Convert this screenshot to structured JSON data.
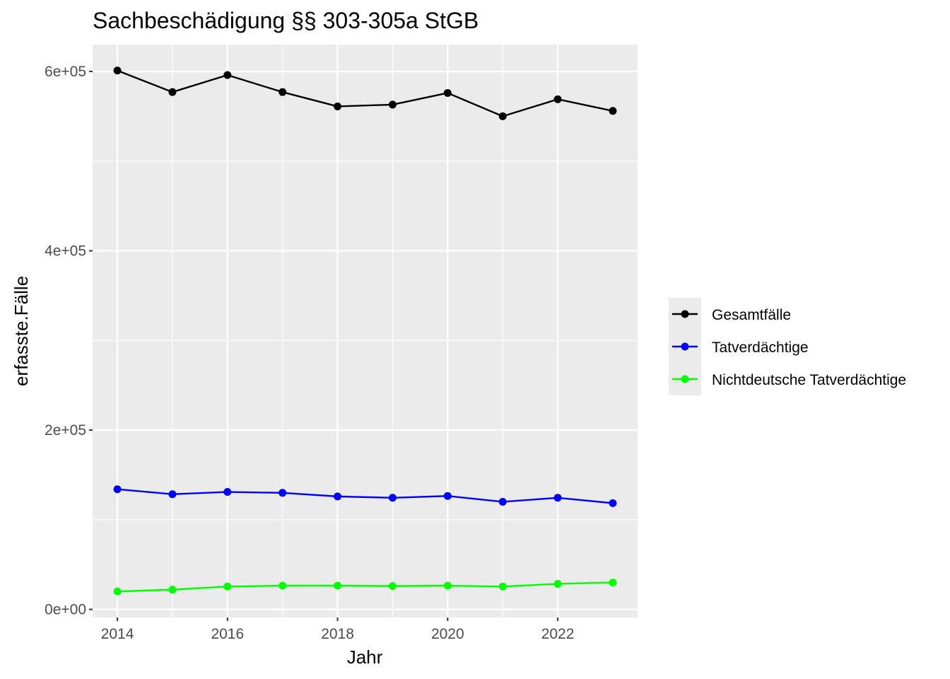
{
  "chart_data": {
    "type": "line",
    "title": "Sachbeschädigung §§ 303-305a StGB",
    "xlabel": "Jahr",
    "ylabel": "erfasste.Fälle",
    "x": [
      2014,
      2015,
      2016,
      2017,
      2018,
      2019,
      2020,
      2021,
      2022,
      2023
    ],
    "xlim": [
      2013.55,
      2023.45
    ],
    "ylim": [
      -9000,
      630000
    ],
    "x_ticks": [
      2014,
      2016,
      2018,
      2020,
      2022
    ],
    "x_tick_labels": [
      "2014",
      "2016",
      "2018",
      "2020",
      "2022"
    ],
    "y_ticks": [
      0,
      200000,
      400000,
      600000
    ],
    "y_tick_labels": [
      "0e+00",
      "2e+05",
      "4e+05",
      "6e+05"
    ],
    "grid": true,
    "legend_position": "right",
    "panel_background": "#ebebeb",
    "series": [
      {
        "name": "Gesamtfälle",
        "color": "#000000",
        "values": [
          601000,
          577000,
          596000,
          577000,
          561000,
          563000,
          576000,
          550000,
          569000,
          556000
        ]
      },
      {
        "name": "Tatverdächtige",
        "color": "#0000ff",
        "values": [
          134000,
          128500,
          131000,
          130000,
          126000,
          124500,
          126500,
          120000,
          124500,
          118500
        ]
      },
      {
        "name": "Nichtdeutsche Tatverdächtige",
        "color": "#00ff00",
        "values": [
          20000,
          22000,
          25500,
          26500,
          26500,
          26000,
          26500,
          25500,
          28500,
          30000
        ]
      }
    ]
  }
}
